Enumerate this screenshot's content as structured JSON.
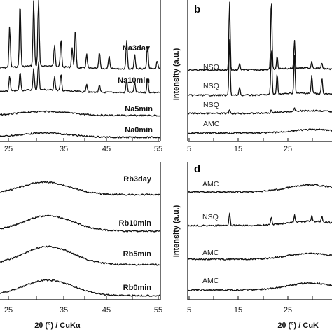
{
  "chart_data": [
    {
      "panel": "a",
      "type": "line",
      "x_ticks": [
        25,
        35,
        45,
        55
      ],
      "xlim": [
        22,
        55
      ],
      "series": [
        {
          "name": "Na3day",
          "pattern": "crystalline_sharp"
        },
        {
          "name": "Na10min",
          "pattern": "crystalline"
        },
        {
          "name": "Na5min",
          "pattern": "amorphous"
        },
        {
          "name": "Na0min",
          "pattern": "amorphous"
        }
      ]
    },
    {
      "panel": "b",
      "type": "line",
      "panel_label": "b",
      "ylabel": "Intensity (a.u.)",
      "x_ticks": [
        5,
        15,
        25
      ],
      "xlim": [
        5,
        34
      ],
      "series": [
        {
          "name": "NSQ",
          "pattern": "crystalline_sharp"
        },
        {
          "name": "NSQ",
          "pattern": "crystalline"
        },
        {
          "name": "NSQ",
          "pattern": "weak_crystalline"
        },
        {
          "name": "AMC",
          "pattern": "amorphous"
        }
      ]
    },
    {
      "panel": "c",
      "type": "line",
      "xlabel": "2θ (°) / CuKα",
      "x_ticks": [
        25,
        35,
        45,
        55
      ],
      "xlim": [
        22,
        55
      ],
      "series": [
        {
          "name": "Rb3day",
          "pattern": "amorphous"
        },
        {
          "name": "Rb10min",
          "pattern": "amorphous"
        },
        {
          "name": "Rb5min",
          "pattern": "amorphous"
        },
        {
          "name": "Rb0min",
          "pattern": "amorphous"
        }
      ]
    },
    {
      "panel": "d",
      "type": "line",
      "panel_label": "d",
      "ylabel": "Intensity (a.u.)",
      "xlabel": "2θ (°) / CuK",
      "x_ticks": [
        5,
        15,
        25
      ],
      "xlim": [
        5,
        34
      ],
      "series": [
        {
          "name": "AMC",
          "pattern": "amorphous"
        },
        {
          "name": "NSQ",
          "pattern": "weak_crystalline"
        },
        {
          "name": "AMC",
          "pattern": "amorphous"
        },
        {
          "name": "AMC",
          "pattern": "amorphous"
        }
      ]
    }
  ]
}
